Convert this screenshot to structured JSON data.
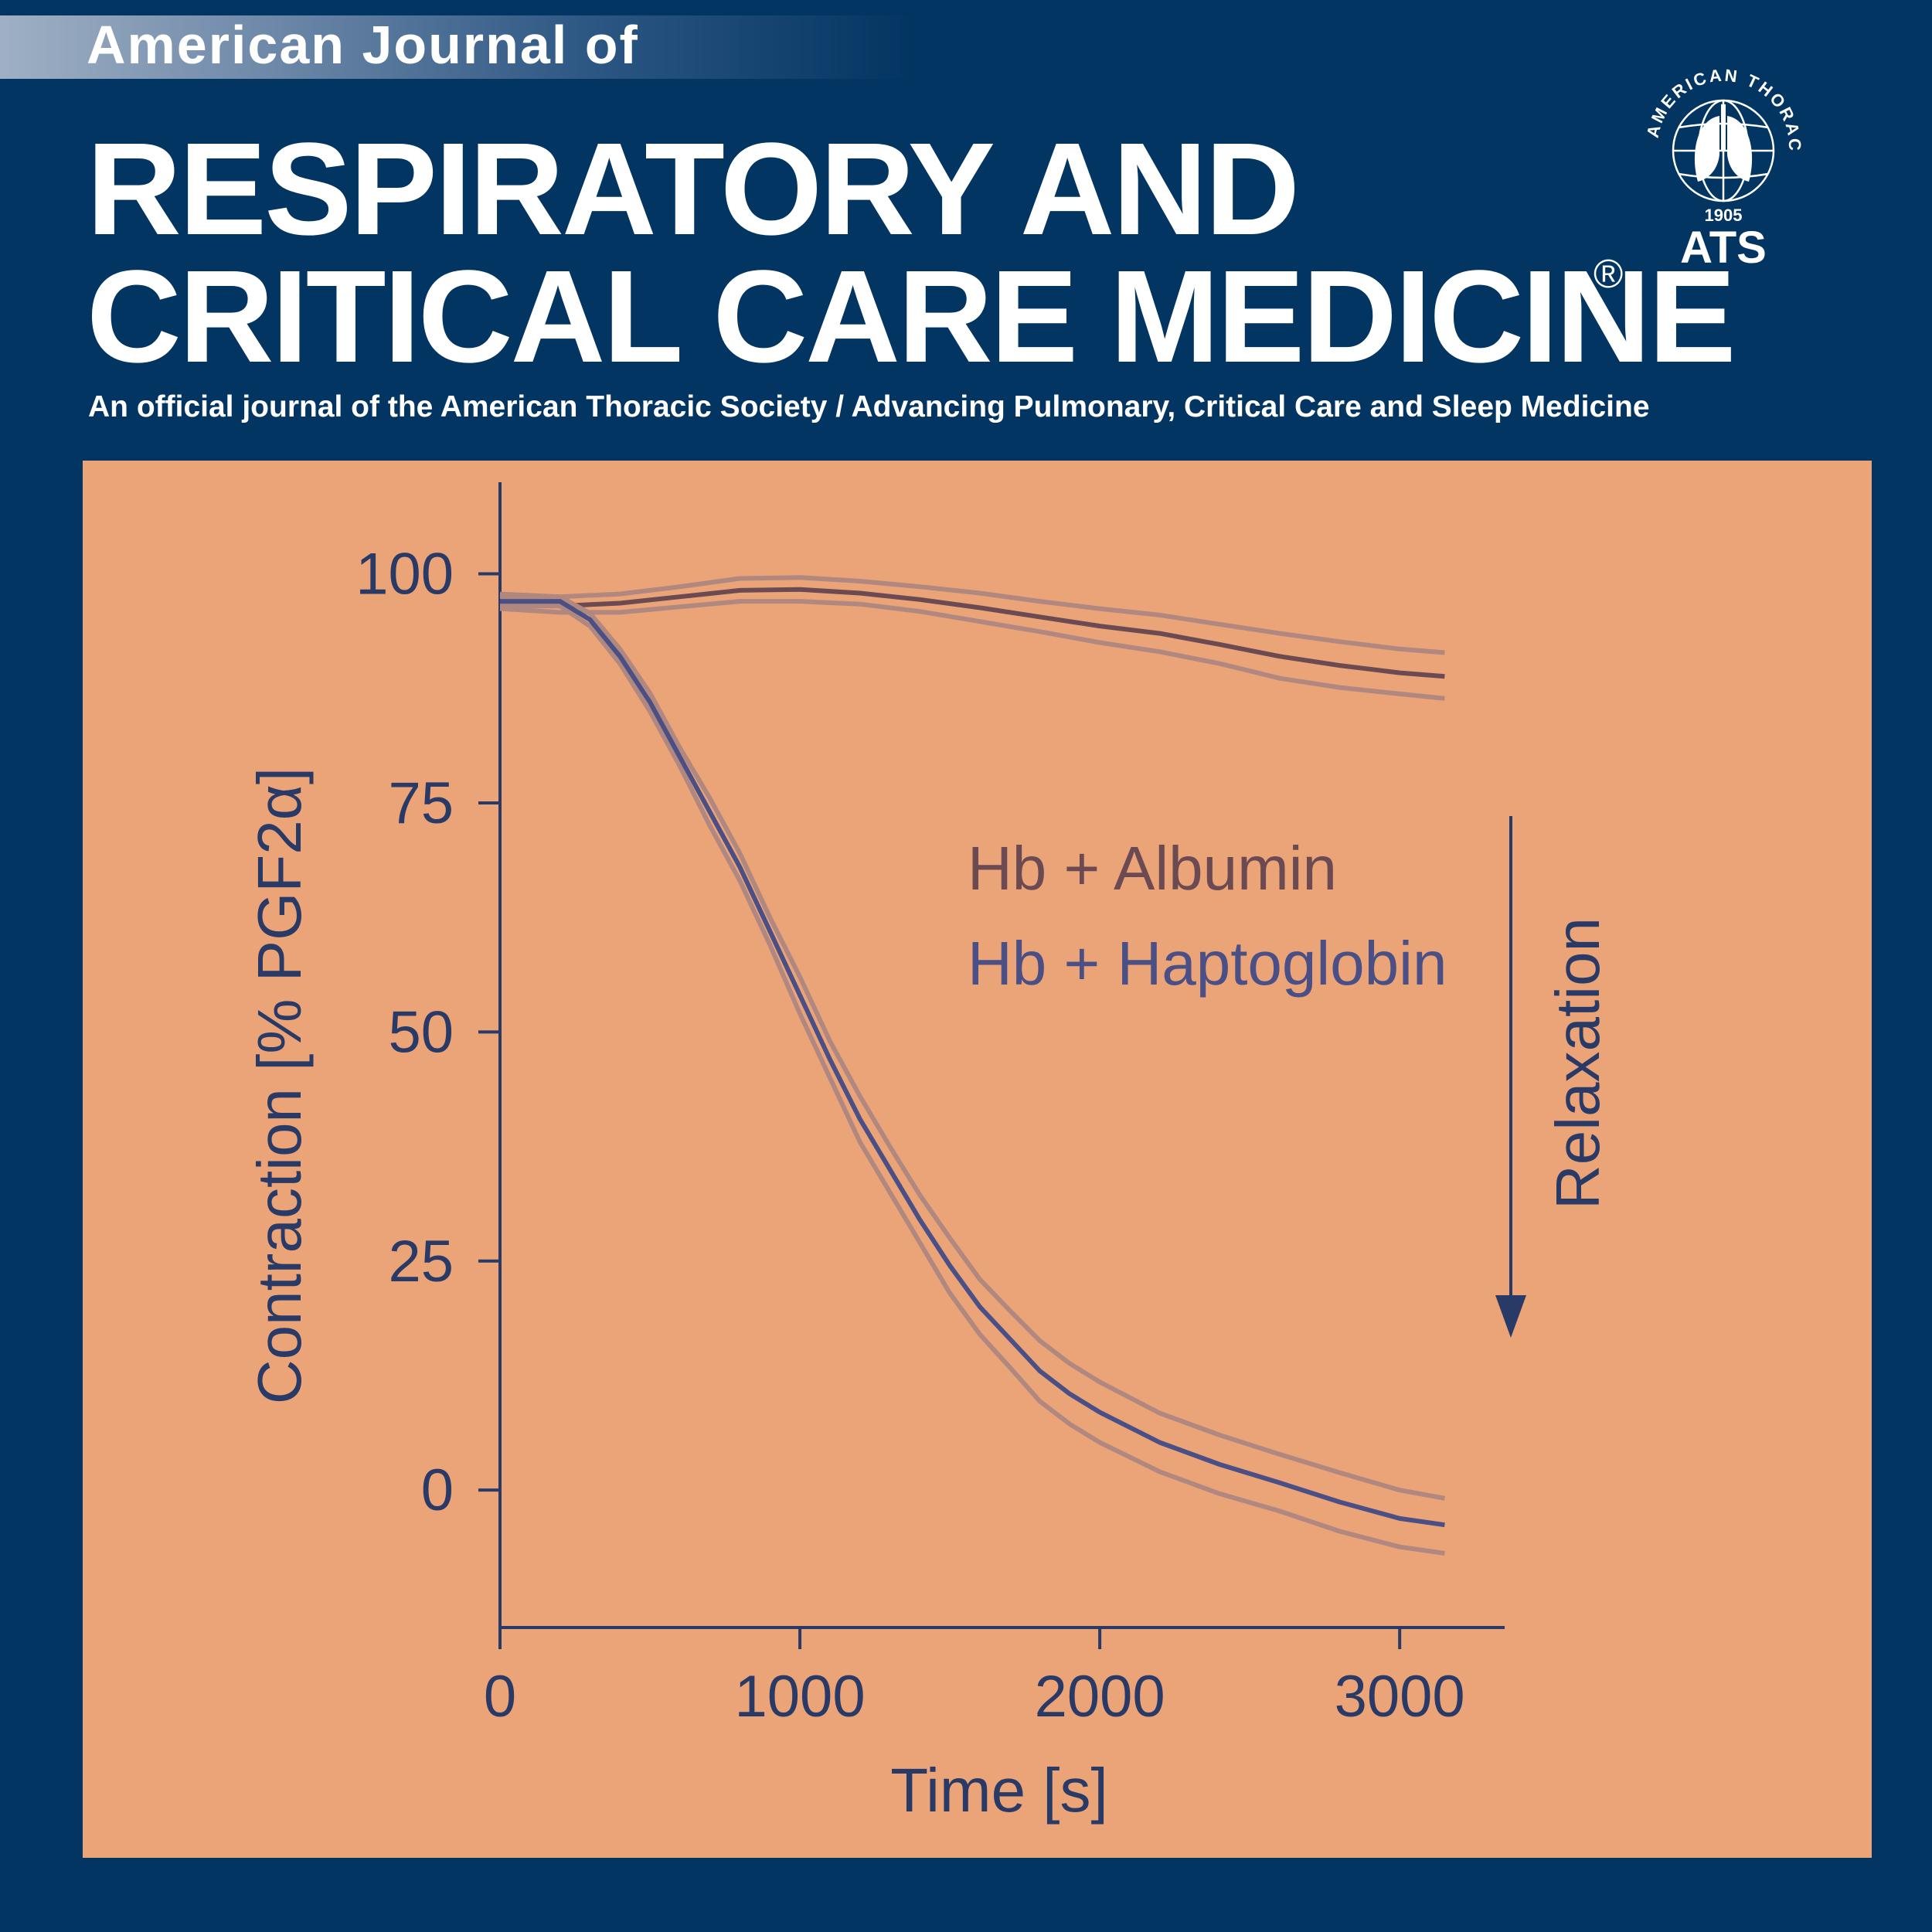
{
  "journal": {
    "kicker": "American Journal of",
    "title_line1": "RESPIRATORY AND",
    "title_line2": "CRITICAL CARE MEDICINE",
    "registered_mark": "®",
    "subtitle": "An official journal of the American Thoracic Society / Advancing Pulmonary, Critical Care and Sleep Medicine"
  },
  "logo": {
    "ring_text": "AMERICAN THORACIC SOCIETY",
    "year": "1905",
    "abbrev": "ATS"
  },
  "colors": {
    "background": "#033562",
    "panel": "#eba378",
    "axis": "#2a3a66",
    "albumin_series": "#6b4a52",
    "haptoglobin_series": "#4a4f86",
    "band": "#b08880"
  },
  "chart_data": {
    "type": "line",
    "xlabel": "Time [s]",
    "ylabel": "Contraction [% PGF2α]",
    "annotation": "Relaxation",
    "xlim": [
      0,
      3350
    ],
    "ylim": [
      -15,
      110
    ],
    "xticks": [
      0,
      1000,
      2000,
      3000
    ],
    "yticks": [
      0,
      25,
      50,
      75,
      100
    ],
    "grid": false,
    "legend_position": "center-right",
    "series": [
      {
        "name": "Hb + Albumin",
        "color": "#6b4a52",
        "x": [
          0,
          200,
          400,
          600,
          800,
          1000,
          1200,
          1400,
          1600,
          1800,
          2000,
          2200,
          2400,
          2600,
          2800,
          3000,
          3150
        ],
        "y": [
          97,
          96.5,
          96.8,
          97.5,
          98.2,
          98.3,
          97.9,
          97.2,
          96.3,
          95.3,
          94.3,
          93.5,
          92.3,
          91.0,
          90.0,
          89.2,
          88.8
        ],
        "upper": [
          97.8,
          97.5,
          97.8,
          98.6,
          99.5,
          99.6,
          99.2,
          98.6,
          97.9,
          97.0,
          96.2,
          95.5,
          94.5,
          93.5,
          92.6,
          91.8,
          91.4
        ],
        "lower": [
          96.2,
          95.8,
          95.8,
          96.4,
          97.0,
          97.0,
          96.7,
          95.9,
          94.8,
          93.7,
          92.5,
          91.5,
          90.2,
          88.6,
          87.6,
          86.9,
          86.4
        ]
      },
      {
        "name": "Hb + Haptoglobin",
        "color": "#4a4f86",
        "x": [
          0,
          200,
          300,
          400,
          500,
          600,
          700,
          800,
          900,
          1000,
          1100,
          1200,
          1300,
          1400,
          1500,
          1600,
          1700,
          1800,
          1900,
          2000,
          2200,
          2400,
          2600,
          2800,
          3000,
          3150
        ],
        "y": [
          97,
          97,
          95,
          91,
          86,
          80,
          74,
          68,
          61,
          54,
          47,
          40.5,
          35,
          29.5,
          24.5,
          20,
          16.5,
          13,
          10.5,
          8.5,
          5.2,
          2.8,
          0.8,
          -1.3,
          -3.1,
          -3.8
        ],
        "upper": [
          97.5,
          97.5,
          95.7,
          91.8,
          87,
          81,
          75.5,
          69.5,
          62.5,
          56,
          49,
          43,
          37.5,
          32.2,
          27.5,
          23,
          19.6,
          16.3,
          13.8,
          11.8,
          8.4,
          6,
          3.9,
          1.9,
          0,
          -0.9
        ],
        "lower": [
          96.5,
          96.5,
          94.3,
          90.2,
          85,
          79,
          72.5,
          66.5,
          59.5,
          52,
          45,
          38,
          32.5,
          27,
          21.5,
          17,
          13.4,
          9.7,
          7.2,
          5.2,
          2,
          -0.4,
          -2.3,
          -4.5,
          -6.2,
          -6.9
        ]
      }
    ]
  }
}
